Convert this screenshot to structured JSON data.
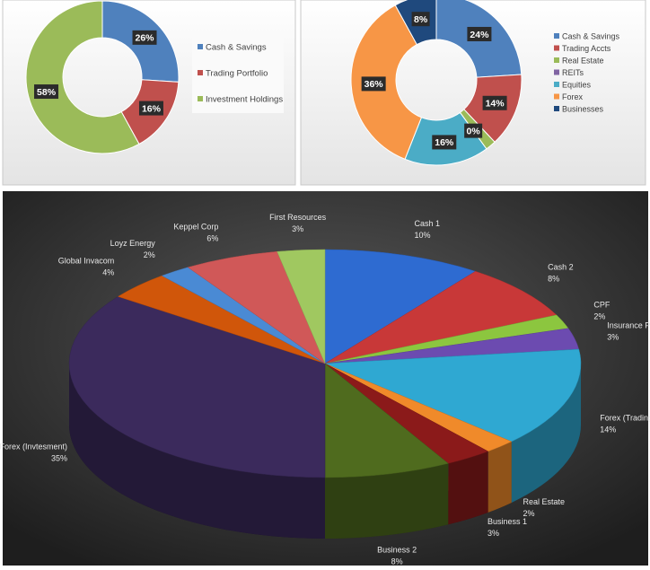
{
  "chart_data": [
    {
      "type": "doughnut",
      "categories": [
        "Cash & Savings",
        "Trading Portfolio",
        "Investment Holdings"
      ],
      "values": [
        26,
        16,
        58
      ],
      "value_labels": [
        "26%",
        "16%",
        "58%"
      ],
      "colors": [
        "#4f81bd",
        "#c0504d",
        "#9bbb59"
      ]
    },
    {
      "type": "doughnut",
      "categories": [
        "Cash & Savings",
        "Trading Accts",
        "Real Estate",
        "REITs",
        "Equities",
        "Forex",
        "Businesses"
      ],
      "values": [
        24,
        14,
        2,
        0,
        16,
        36,
        8
      ],
      "value_labels": [
        "24%",
        "14%",
        null,
        "0%",
        "16%",
        "36%",
        "8%"
      ],
      "colors": [
        "#4f81bd",
        "#c0504d",
        "#9bbb59",
        "#8064a2",
        "#4bacc6",
        "#f79646",
        "#1f497d"
      ]
    },
    {
      "type": "pie",
      "three_d": true,
      "categories": [
        "Cash 1",
        "Cash 2",
        "CPF",
        "Insurance Policies",
        "Forex (Trading)",
        "Real Estate",
        "Business 1",
        "Business 2",
        "Forex (Invtesment)",
        "Global Invacom",
        "Loyz Energy",
        "Keppel Corp",
        "First Resources"
      ],
      "values": [
        10,
        8,
        2,
        3,
        14,
        2,
        3,
        8,
        35,
        4,
        2,
        6,
        3
      ],
      "value_labels": [
        "10%",
        "8%",
        "2%",
        "3%",
        "14%",
        "2%",
        "3%",
        "8%",
        "35%",
        "4%",
        "2%",
        "6%",
        "3%"
      ],
      "colors": [
        "#2e6bd1",
        "#c83838",
        "#8cc63f",
        "#6c4bb0",
        "#2fa8d2",
        "#f08a2a",
        "#8b1a1a",
        "#4f6b1e",
        "#3b2a5c",
        "#d0560a",
        "#4a8ad4",
        "#d05858",
        "#a0c860"
      ]
    }
  ]
}
